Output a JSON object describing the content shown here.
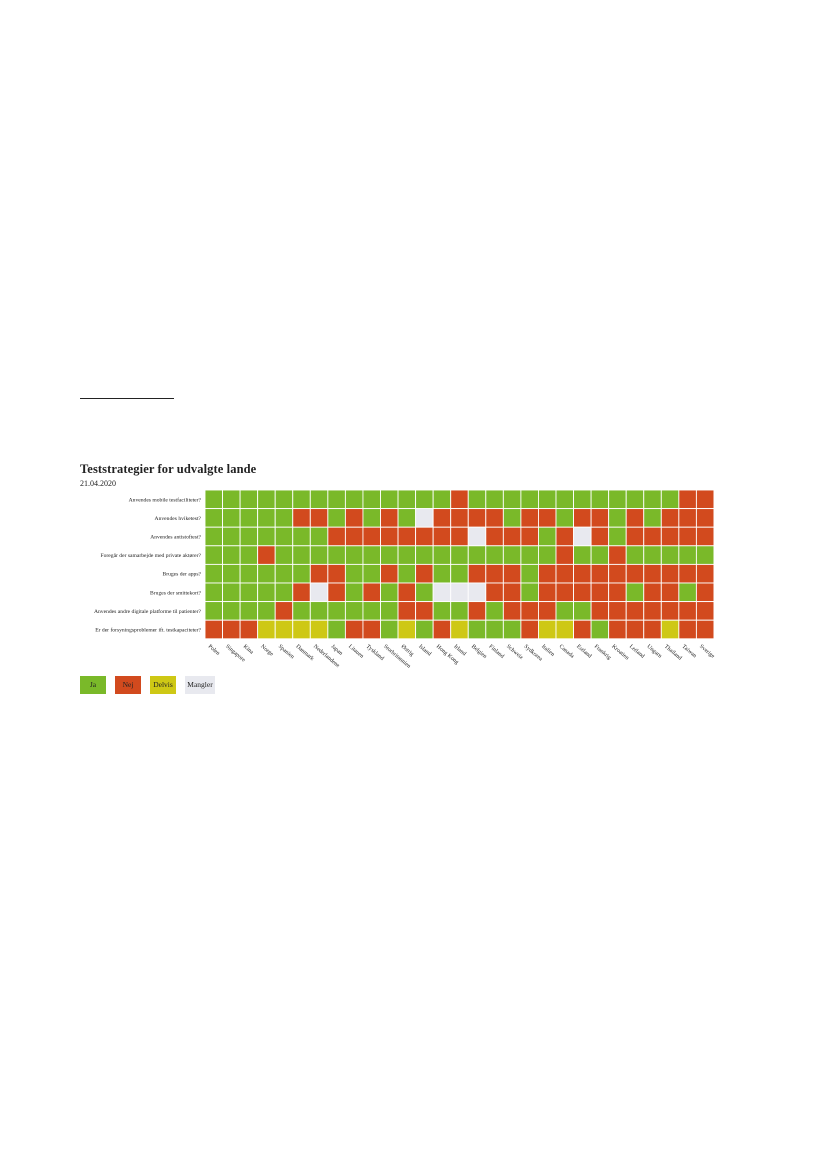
{
  "chart_data": {
    "type": "heatmap",
    "title": "Teststrategier for udvalgte lande",
    "subtitle": "21.04.2020",
    "rows": [
      "Anvendes mobile testfaciliteter?",
      "Anvendes hviketest?",
      "Anvendes antistoftest?",
      "Foregår der samarbejde med private aktører?",
      "Bruges der apps?",
      "Bruges der smittekort?",
      "Anvendes andre digitale platforme til patienter?",
      "Er der forsyningsproblemer ift. testkapaciteter?"
    ],
    "columns": [
      "Polen",
      "Singapore",
      "Kina",
      "Norge",
      "Spanien",
      "Danmark",
      "Nederlandene",
      "Japan",
      "Litauen",
      "Tyskland",
      "Storbritannien",
      "Østrig",
      "Island",
      "Hong Kong",
      "Irland",
      "Belgien",
      "Finland",
      "Schweiz",
      "Sydkorea",
      "Italien",
      "Canada",
      "Estland",
      "Frankrig",
      "Kroatien",
      "Letland",
      "Ungarn",
      "Thailand",
      "Taiwan",
      "Sverige"
    ],
    "categories": [
      "Ja",
      "Nej",
      "Delvis",
      "Mangler"
    ],
    "category_colors": {
      "Ja": "#7ab929",
      "Nej": "#d24a1e",
      "Delvis": "#cec815",
      "Mangler": "#e8e9ef"
    },
    "values": [
      [
        "Ja",
        "Ja",
        "Ja",
        "Ja",
        "Ja",
        "Ja",
        "Ja",
        "Ja",
        "Ja",
        "Ja",
        "Ja",
        "Ja",
        "Ja",
        "Ja",
        "Nej",
        "Ja",
        "Ja",
        "Ja",
        "Ja",
        "Ja",
        "Ja",
        "Ja",
        "Ja",
        "Ja",
        "Ja",
        "Ja",
        "Ja",
        "Nej",
        "Nej"
      ],
      [
        "Ja",
        "Ja",
        "Ja",
        "Ja",
        "Ja",
        "Nej",
        "Nej",
        "Ja",
        "Nej",
        "Ja",
        "Nej",
        "Ja",
        "Mangler",
        "Nej",
        "Nej",
        "Nej",
        "Nej",
        "Ja",
        "Nej",
        "Nej",
        "Ja",
        "Nej",
        "Nej",
        "Ja",
        "Nej",
        "Ja",
        "Nej",
        "Nej",
        "Nej"
      ],
      [
        "Ja",
        "Ja",
        "Ja",
        "Ja",
        "Ja",
        "Ja",
        "Ja",
        "Nej",
        "Nej",
        "Nej",
        "Nej",
        "Nej",
        "Nej",
        "Nej",
        "Nej",
        "Mangler",
        "Nej",
        "Nej",
        "Nej",
        "Ja",
        "Nej",
        "Mangler",
        "Nej",
        "Ja",
        "Nej",
        "Nej",
        "Nej",
        "Nej",
        "Nej"
      ],
      [
        "Ja",
        "Ja",
        "Ja",
        "Nej",
        "Ja",
        "Ja",
        "Ja",
        "Ja",
        "Ja",
        "Ja",
        "Ja",
        "Ja",
        "Ja",
        "Ja",
        "Ja",
        "Ja",
        "Ja",
        "Ja",
        "Ja",
        "Ja",
        "Nej",
        "Ja",
        "Ja",
        "Nej",
        "Ja",
        "Ja",
        "Ja",
        "Ja",
        "Ja"
      ],
      [
        "Ja",
        "Ja",
        "Ja",
        "Ja",
        "Ja",
        "Ja",
        "Nej",
        "Nej",
        "Ja",
        "Ja",
        "Nej",
        "Ja",
        "Nej",
        "Ja",
        "Ja",
        "Nej",
        "Nej",
        "Nej",
        "Ja",
        "Nej",
        "Nej",
        "Nej",
        "Nej",
        "Nej",
        "Nej",
        "Nej",
        "Nej",
        "Nej",
        "Nej"
      ],
      [
        "Ja",
        "Ja",
        "Ja",
        "Ja",
        "Ja",
        "Nej",
        "Mangler",
        "Nej",
        "Ja",
        "Nej",
        "Ja",
        "Nej",
        "Ja",
        "Mangler",
        "Mangler",
        "Mangler",
        "Nej",
        "Nej",
        "Ja",
        "Nej",
        "Nej",
        "Nej",
        "Nej",
        "Nej",
        "Ja",
        "Nej",
        "Nej",
        "Ja",
        "Nej"
      ],
      [
        "Ja",
        "Ja",
        "Ja",
        "Ja",
        "Nej",
        "Ja",
        "Ja",
        "Ja",
        "Ja",
        "Ja",
        "Ja",
        "Nej",
        "Nej",
        "Ja",
        "Ja",
        "Nej",
        "Ja",
        "Nej",
        "Nej",
        "Nej",
        "Ja",
        "Ja",
        "Nej",
        "Nej",
        "Nej",
        "Nej",
        "Nej",
        "Nej",
        "Nej"
      ],
      [
        "Nej",
        "Nej",
        "Nej",
        "Delvis",
        "Delvis",
        "Delvis",
        "Delvis",
        "Ja",
        "Nej",
        "Nej",
        "Ja",
        "Delvis",
        "Ja",
        "Nej",
        "Delvis",
        "Ja",
        "Ja",
        "Ja",
        "Nej",
        "Delvis",
        "Delvis",
        "Nej",
        "Ja",
        "Nej",
        "Nej",
        "Nej",
        "Delvis",
        "Nej",
        "Nej"
      ]
    ]
  }
}
